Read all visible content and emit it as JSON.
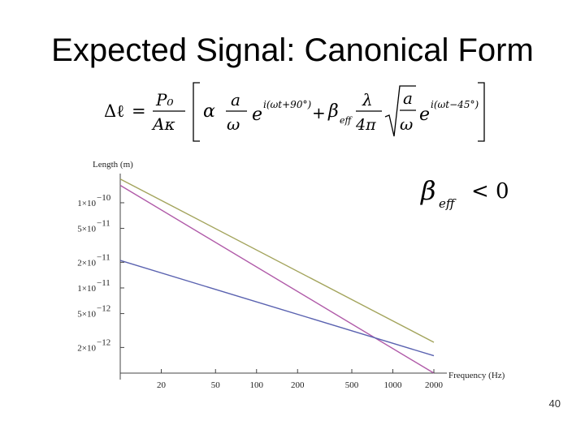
{
  "slide": {
    "title": "Expected Signal: Canonical Form",
    "page_number": "40"
  },
  "formula": {
    "lhs": "Δℓ",
    "eq": "=",
    "prefactor_num": "P₀",
    "prefactor_den": "Aκ",
    "alpha": "α",
    "a": "a",
    "omega": "ω",
    "e": "e",
    "exp1": "i(ωt+90°)",
    "plus": "+",
    "beta": "β",
    "eff": "eff",
    "lambda": "λ",
    "four_pi": "4π",
    "exp2": "i(ωt−45°)"
  },
  "annotation": {
    "beta": "β",
    "sub": "eff",
    "relation": "< 0"
  },
  "chart_data": {
    "type": "line",
    "scale": "log-log",
    "xlabel": "Frequency (Hz)",
    "ylabel": "Length (m)",
    "xlim": [
      10,
      2000
    ],
    "ylim": [
      1e-12,
      2.2e-10
    ],
    "x_ticks": [
      {
        "value": 20,
        "label": "20"
      },
      {
        "value": 50,
        "label": "50"
      },
      {
        "value": 100,
        "label": "100"
      },
      {
        "value": 200,
        "label": "200"
      },
      {
        "value": 500,
        "label": "500"
      },
      {
        "value": 1000,
        "label": "1000"
      },
      {
        "value": 2000,
        "label": "2000"
      }
    ],
    "y_ticks": [
      {
        "value": 1e-10,
        "mant": "1×10",
        "exp": "−10"
      },
      {
        "value": 5e-11,
        "mant": "5×10",
        "exp": "−11"
      },
      {
        "value": 2e-11,
        "mant": "2×10",
        "exp": "−11"
      },
      {
        "value": 1e-11,
        "mant": "1×10",
        "exp": "−11"
      },
      {
        "value": 5e-12,
        "mant": "5×10",
        "exp": "−12"
      },
      {
        "value": 2e-12,
        "mant": "2×10",
        "exp": "−12"
      }
    ],
    "grid": false,
    "series": [
      {
        "color": "#a3a45c",
        "x": [
          10,
          2000
        ],
        "y": [
          1.9e-10,
          2.3e-12
        ]
      },
      {
        "color": "#b05aa8",
        "x": [
          10,
          2000
        ],
        "y": [
          1.6e-10,
          1e-12
        ]
      },
      {
        "color": "#5a62b0",
        "x": [
          10,
          2000
        ],
        "y": [
          2.1e-11,
          1.6e-12
        ]
      }
    ]
  }
}
